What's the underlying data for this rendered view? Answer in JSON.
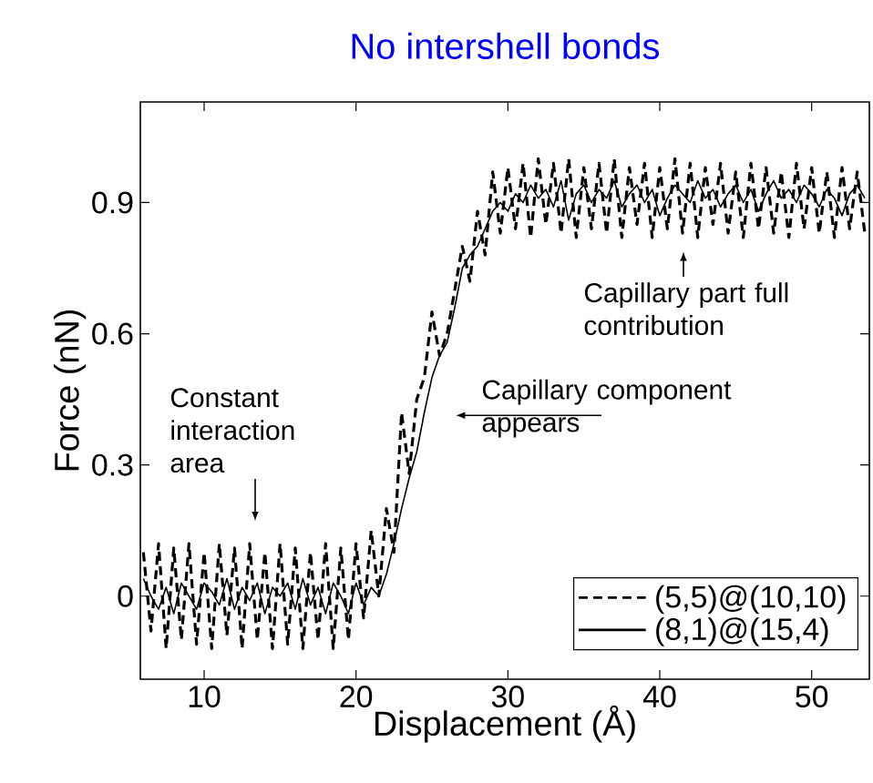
{
  "chart_data": {
    "type": "line",
    "title": "No intershell bonds",
    "xlabel": "Displacement (Å)",
    "ylabel": "Force (nN)",
    "xlim": [
      5.8,
      53.8
    ],
    "ylim": [
      -0.19,
      1.13
    ],
    "xticks": [
      10,
      20,
      30,
      40,
      50
    ],
    "yticks": [
      0,
      0.3,
      0.6,
      0.9
    ],
    "grid": false,
    "legend": "bottom right",
    "marker": "none",
    "x": [
      6,
      6.5,
      7,
      7.5,
      8,
      8.5,
      9,
      9.5,
      10,
      10.5,
      11,
      11.5,
      12,
      12.5,
      13,
      13.5,
      14,
      14.5,
      15,
      15.5,
      16,
      16.5,
      17,
      17.5,
      18,
      18.5,
      19,
      19.5,
      20,
      20.5,
      21,
      21.5,
      22,
      22.5,
      23,
      23.5,
      24,
      24.5,
      25,
      25.5,
      26,
      26.5,
      27,
      27.5,
      28,
      28.5,
      29,
      29.5,
      30,
      30.5,
      31,
      31.5,
      32,
      32.5,
      33,
      33.5,
      34,
      34.5,
      35,
      35.5,
      36,
      36.5,
      37,
      37.5,
      38,
      38.5,
      39,
      39.5,
      40,
      40.5,
      41,
      41.5,
      42,
      42.5,
      43,
      43.5,
      44,
      44.5,
      45,
      45.5,
      46,
      46.5,
      47,
      47.5,
      48,
      48.5,
      49,
      49.5,
      50,
      50.5,
      51,
      51.5,
      52,
      52.5,
      53,
      53.5
    ],
    "series": [
      {
        "name": "(5,5)@(10,10)",
        "color": "#000000",
        "line_style": "dashed",
        "values": [
          0.1,
          -0.08,
          0.12,
          -0.12,
          0.11,
          -0.1,
          0.12,
          -0.11,
          0.1,
          -0.12,
          0.12,
          -0.09,
          0.11,
          -0.12,
          0.12,
          -0.1,
          0.1,
          -0.12,
          0.12,
          -0.11,
          0.11,
          -0.12,
          0.1,
          -0.1,
          0.12,
          -0.12,
          0.11,
          -0.1,
          0.12,
          -0.05,
          0.15,
          0.0,
          0.2,
          0.1,
          0.42,
          0.28,
          0.45,
          0.5,
          0.65,
          0.55,
          0.6,
          0.7,
          0.8,
          0.72,
          0.88,
          0.78,
          0.97,
          0.83,
          0.98,
          0.84,
          0.99,
          0.82,
          1.0,
          0.85,
          0.99,
          0.83,
          1.0,
          0.82,
          0.98,
          0.84,
          0.99,
          0.83,
          1.0,
          0.82,
          0.98,
          0.85,
          0.99,
          0.82,
          0.98,
          0.84,
          1.0,
          0.83,
          0.99,
          0.82,
          0.98,
          0.85,
          0.99,
          0.83,
          0.97,
          0.82,
          0.99,
          0.84,
          0.98,
          0.83,
          0.97,
          0.82,
          0.99,
          0.84,
          0.98,
          0.83,
          0.97,
          0.82,
          0.98,
          0.84,
          0.97,
          0.83
        ]
      },
      {
        "name": "(8,1)@(15,4)",
        "color": "#000000",
        "line_style": "solid",
        "values": [
          0.04,
          0.0,
          -0.03,
          0.02,
          -0.04,
          0.03,
          0.0,
          -0.03,
          0.03,
          0.01,
          -0.02,
          0.04,
          -0.03,
          0.02,
          -0.01,
          0.03,
          -0.04,
          0.02,
          0.0,
          0.03,
          -0.03,
          0.04,
          -0.02,
          0.02,
          -0.04,
          0.03,
          0.0,
          -0.04,
          0.03,
          -0.02,
          0.02,
          0.0,
          0.05,
          0.12,
          0.2,
          0.27,
          0.33,
          0.42,
          0.5,
          0.55,
          0.58,
          0.66,
          0.75,
          0.78,
          0.8,
          0.84,
          0.88,
          0.9,
          0.88,
          0.92,
          0.9,
          0.94,
          0.91,
          0.93,
          0.89,
          0.95,
          0.86,
          0.92,
          0.94,
          0.9,
          0.93,
          0.91,
          0.95,
          0.89,
          0.92,
          0.94,
          0.9,
          0.93,
          0.87,
          0.91,
          0.94,
          0.92,
          0.9,
          0.95,
          0.91,
          0.93,
          0.89,
          0.92,
          0.94,
          0.9,
          0.93,
          0.88,
          0.92,
          0.95,
          0.91,
          0.93,
          0.9,
          0.94,
          0.92,
          0.89,
          0.93,
          0.91,
          0.87,
          0.92,
          0.94,
          0.91
        ]
      }
    ],
    "annotations": [
      "Constant interaction area",
      "Capillary component appears",
      "Capillary part full contribution"
    ]
  }
}
